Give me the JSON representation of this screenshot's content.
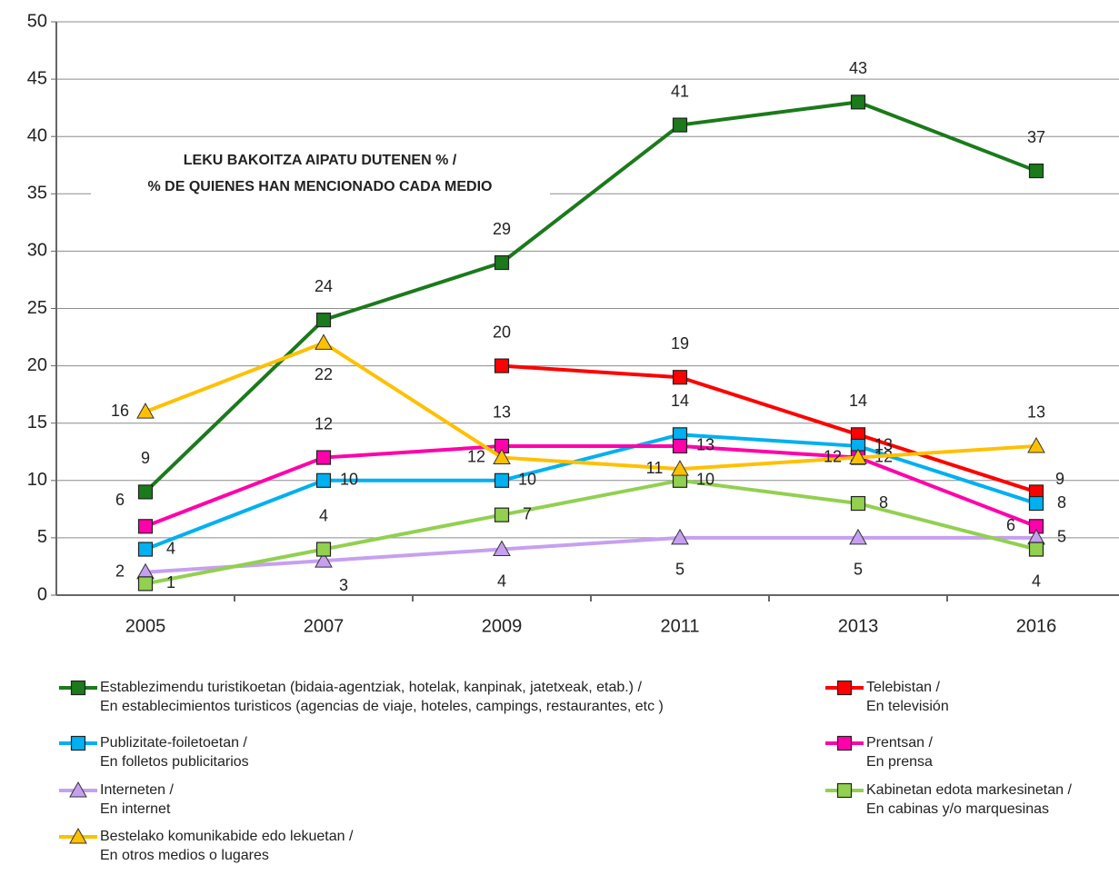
{
  "chart_data": {
    "type": "line",
    "annotation": [
      "LEKU BAKOITZA AIPATU DUTENEN % /",
      "% DE QUIENES HAN MENCIONADO CADA MEDIO"
    ],
    "categories": [
      "2005",
      "2007",
      "2009",
      "2011",
      "2013",
      "2016"
    ],
    "ylim": [
      0,
      50
    ],
    "yticks": [
      0,
      5,
      10,
      15,
      20,
      25,
      30,
      35,
      40,
      45,
      50
    ],
    "grid": true,
    "series": [
      {
        "name": "Establezimendu turistikoetan (bidaia-agentziak, hotelak, kanpinak, jatetxeak, etab.) /\nEn establecimientos turisticos (agencias de viaje, hoteles, campings, restaurantes, etc )",
        "color": "#1b7a1b",
        "marker": "square",
        "values": [
          9,
          24,
          29,
          41,
          43,
          37
        ]
      },
      {
        "name": "Telebistan /\nEn televisión",
        "color": "#ff0000",
        "marker": "square",
        "values": [
          null,
          null,
          20,
          19,
          14,
          9
        ]
      },
      {
        "name": "Publizitate-foiletoetan /\nEn folletos publicitarios",
        "color": "#00b0f0",
        "marker": "square",
        "values": [
          4,
          10,
          10,
          14,
          13,
          8
        ]
      },
      {
        "name": "Prentsan /\nEn prensa",
        "color": "#ff00aa",
        "marker": "square",
        "values": [
          6,
          12,
          13,
          13,
          12,
          6
        ]
      },
      {
        "name": "Interneten /\nEn internet",
        "color": "#c6a0f0",
        "marker": "triangle",
        "values": [
          2,
          3,
          4,
          5,
          5,
          5
        ]
      },
      {
        "name": "Kabinetan edota markesinetan /\nEn cabinas y/o marquesinas",
        "color": "#92d050",
        "marker": "square",
        "values": [
          1,
          4,
          7,
          10,
          8,
          4
        ]
      },
      {
        "name": "Bestelako komunikabide edo lekuetan /\nEn otros medios o lugares",
        "color": "#ffc000",
        "marker": "triangle",
        "values": [
          16,
          22,
          12,
          11,
          12,
          13
        ]
      }
    ]
  }
}
